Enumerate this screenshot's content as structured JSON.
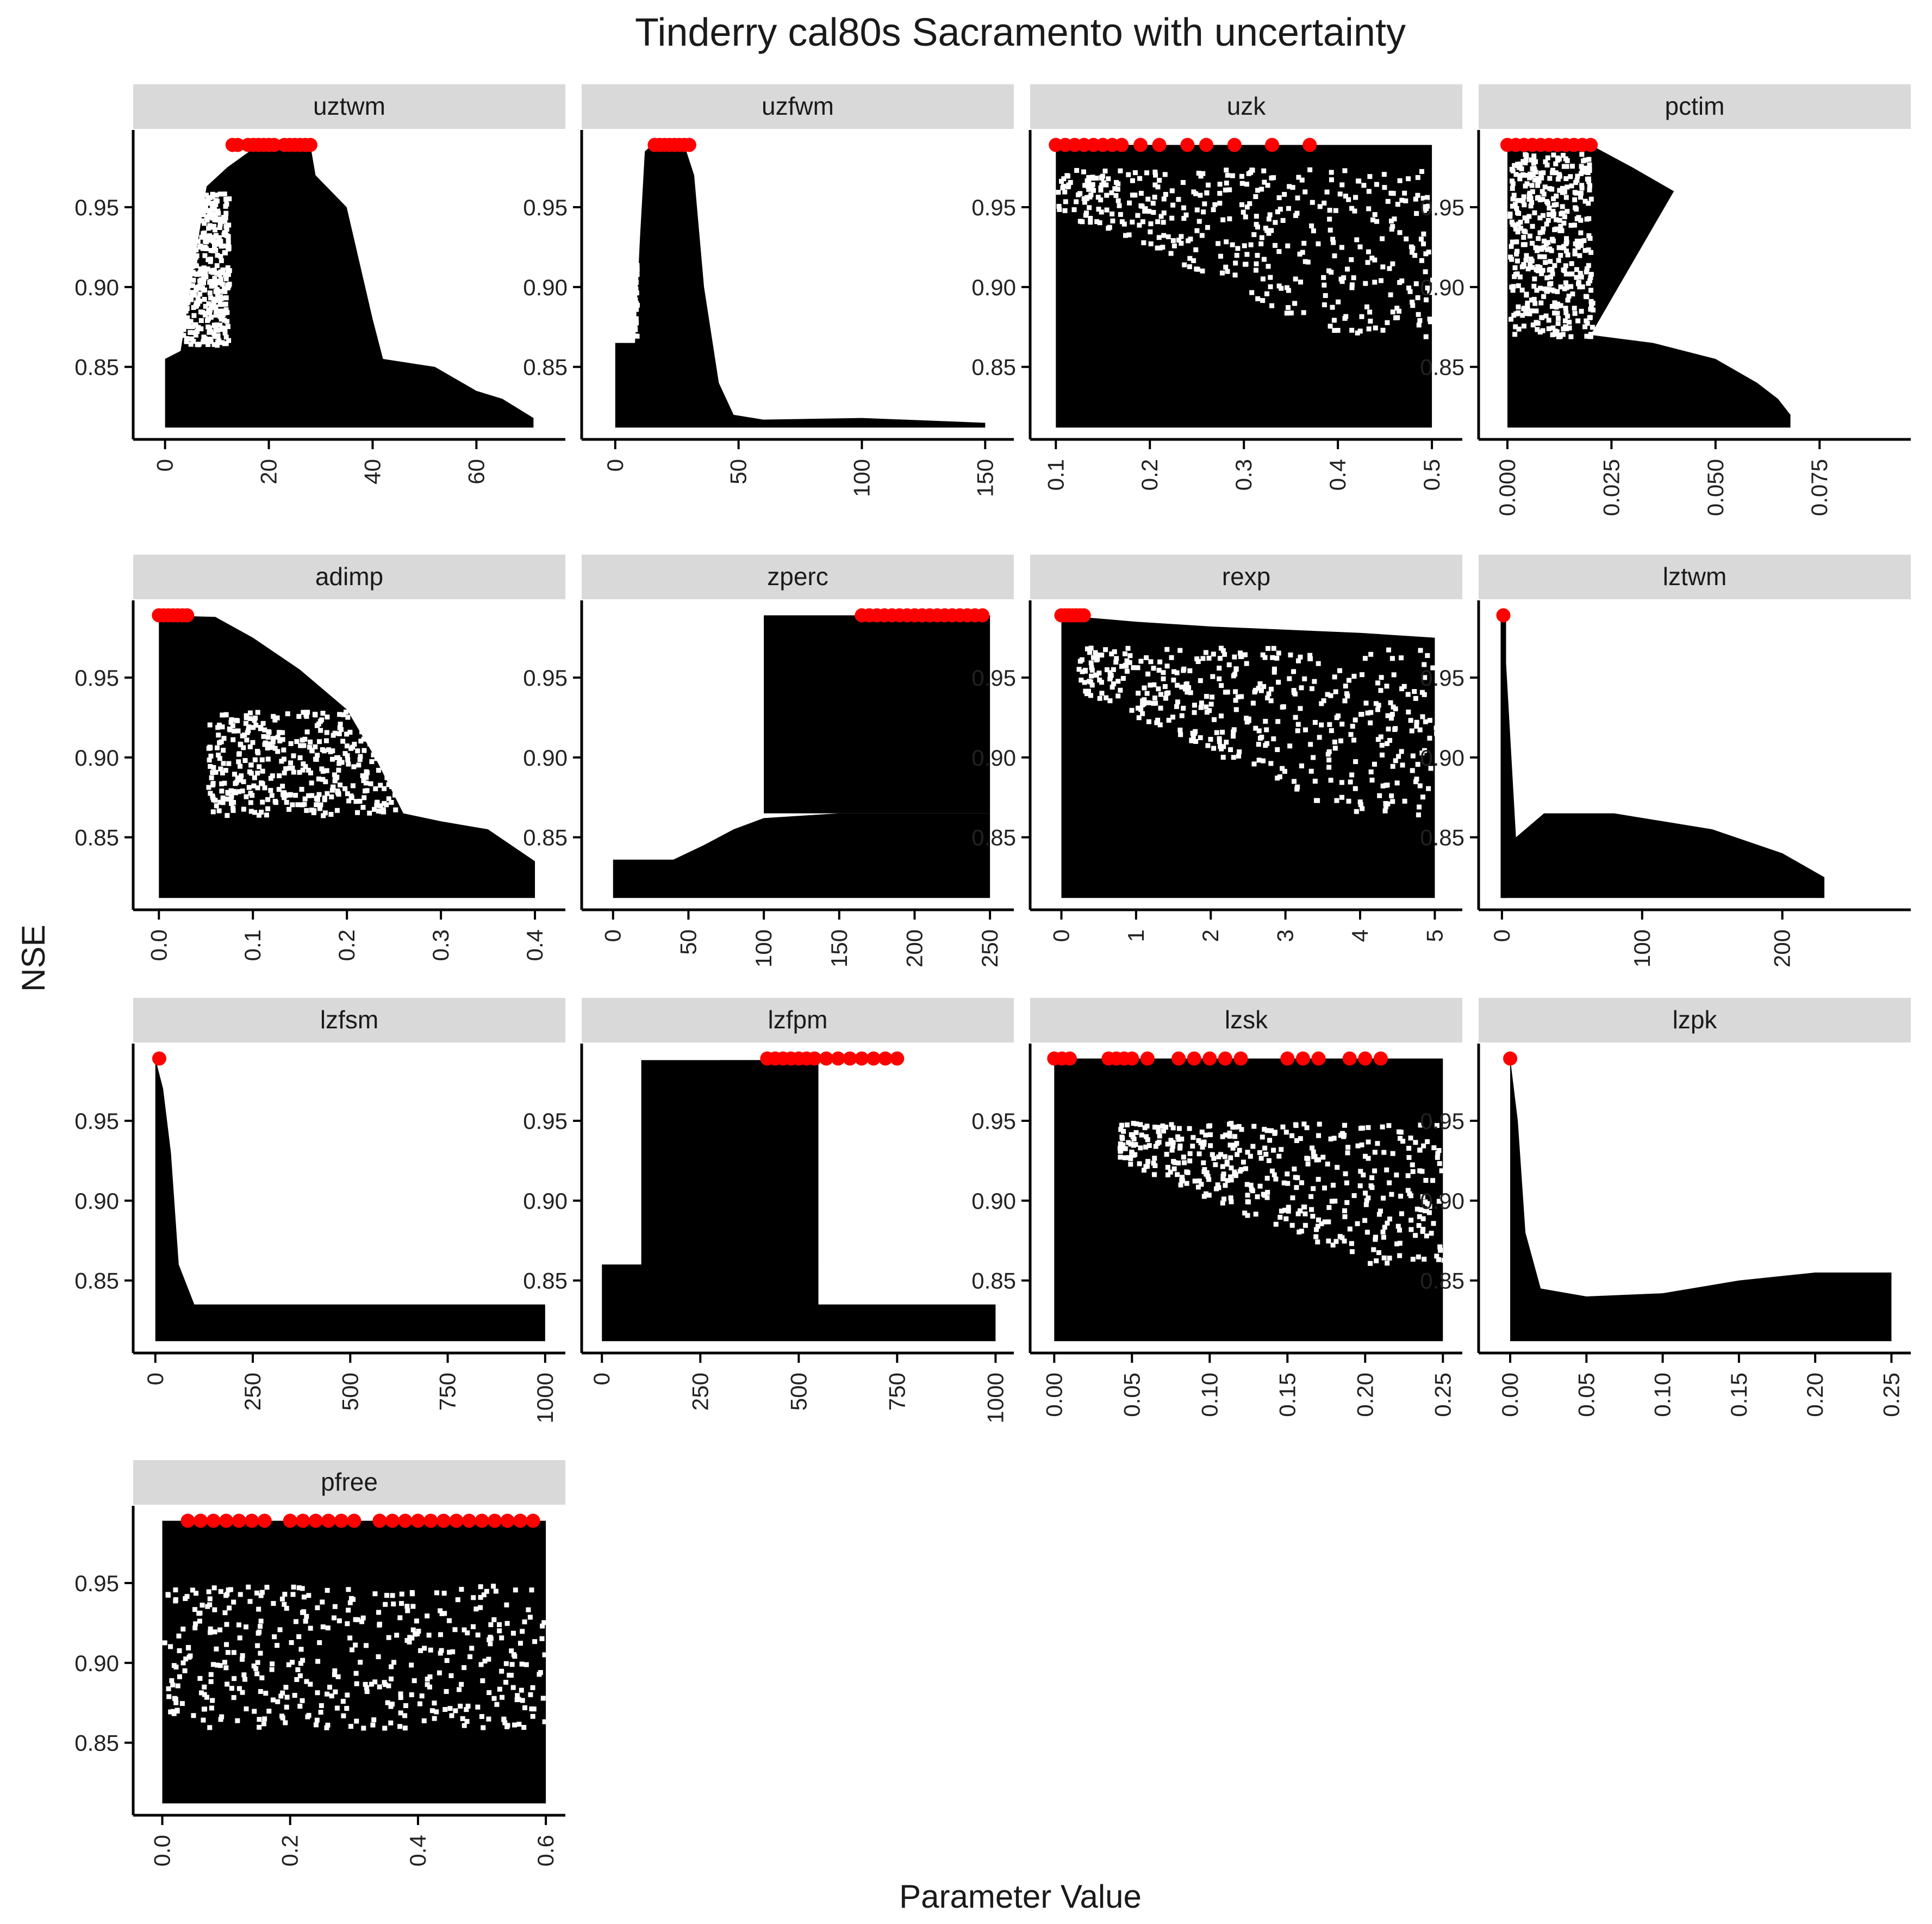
{
  "chart_data": {
    "type": "scatter",
    "title": "Tinderry cal80s Sacramento with uncertainty",
    "xlabel": "Parameter Value",
    "ylabel": "NSE",
    "ylim": [
      0.808,
      0.997
    ],
    "yticks": [
      "0.85",
      "0.90",
      "0.95"
    ],
    "ytick_values": [
      0.85,
      0.9,
      0.95
    ],
    "grid": false,
    "colors": {
      "points": "#000000",
      "best": "#ff0000",
      "strip": "#d9d9d9"
    },
    "panels": [
      {
        "name": "uztwm",
        "xlim": [
          -3,
          74
        ],
        "xticks": [
          0,
          20,
          40,
          60
        ],
        "xtick_labels": [
          "0",
          "20",
          "40",
          "60"
        ],
        "envelope": [
          [
            0,
            0.855
          ],
          [
            3,
            0.86
          ],
          [
            8,
            0.963
          ],
          [
            12,
            0.975
          ],
          [
            18,
            0.989
          ],
          [
            28,
            0.989
          ],
          [
            29,
            0.97
          ],
          [
            35,
            0.95
          ],
          [
            40,
            0.88
          ],
          [
            42,
            0.855
          ],
          [
            52,
            0.85
          ],
          [
            60,
            0.835
          ],
          [
            65,
            0.83
          ],
          [
            71,
            0.818
          ]
        ],
        "white_region": {
          "x": [
            3,
            12
          ],
          "y": [
            0.865,
            0.96
          ]
        },
        "best": [
          13,
          14,
          16,
          17,
          18,
          19,
          20,
          21,
          23,
          24,
          25,
          26,
          27,
          28
        ]
      },
      {
        "name": "uzfwm",
        "xlim": [
          -7,
          155
        ],
        "xticks": [
          0,
          50,
          100,
          150
        ],
        "xtick_labels": [
          "0",
          "50",
          "100",
          "150"
        ],
        "envelope": [
          [
            0,
            0.865
          ],
          [
            8,
            0.865
          ],
          [
            10,
            0.93
          ],
          [
            12,
            0.985
          ],
          [
            15,
            0.989
          ],
          [
            28,
            0.989
          ],
          [
            32,
            0.97
          ],
          [
            36,
            0.9
          ],
          [
            42,
            0.84
          ],
          [
            48,
            0.82
          ],
          [
            60,
            0.817
          ],
          [
            100,
            0.818
          ],
          [
            150,
            0.815
          ]
        ],
        "white_region": {
          "x": [
            0,
            8
          ],
          "y": [
            0.87,
            0.99
          ]
        },
        "best": [
          16,
          18,
          20,
          22,
          24,
          26,
          28,
          30
        ]
      },
      {
        "name": "uzk",
        "xlim": [
          0.09,
          0.515
        ],
        "xticks": [
          0.1,
          0.2,
          0.3,
          0.4,
          0.5
        ],
        "xtick_labels": [
          "0.1",
          "0.2",
          "0.3",
          "0.4",
          "0.5"
        ],
        "envelope": [
          [
            0.1,
            0.989
          ],
          [
            0.5,
            0.989
          ]
        ],
        "white_region": {
          "x": [
            0.1,
            0.5
          ],
          "y": [
            0.87,
            0.975
          ]
        },
        "white_region_tilt": true,
        "best": [
          0.1,
          0.11,
          0.12,
          0.13,
          0.14,
          0.15,
          0.16,
          0.17,
          0.19,
          0.21,
          0.24,
          0.26,
          0.29,
          0.33,
          0.37
        ]
      },
      {
        "name": "pctim",
        "xlim": [
          -0.003,
          0.093
        ],
        "xticks": [
          0.0,
          0.025,
          0.05,
          0.075
        ],
        "xtick_labels": [
          "0.000",
          "0.025",
          "0.050",
          "0.075"
        ],
        "envelope": [
          [
            0,
            0.989
          ],
          [
            0.02,
            0.989
          ],
          [
            0.03,
            0.975
          ],
          [
            0.04,
            0.96
          ],
          [
            0.02,
            0.87
          ],
          [
            0.035,
            0.865
          ],
          [
            0.05,
            0.855
          ],
          [
            0.06,
            0.84
          ],
          [
            0.065,
            0.83
          ],
          [
            0.068,
            0.82
          ]
        ],
        "white_region": {
          "x": [
            0.0,
            0.02
          ],
          "y": [
            0.87,
            0.985
          ]
        },
        "best": [
          0.0,
          0.002,
          0.004,
          0.006,
          0.008,
          0.01,
          0.012,
          0.014,
          0.016,
          0.018,
          0.02
        ]
      },
      {
        "name": "adimp",
        "xlim": [
          -0.01,
          0.415
        ],
        "xticks": [
          0.0,
          0.1,
          0.2,
          0.3,
          0.4
        ],
        "xtick_labels": [
          "0.0",
          "0.1",
          "0.2",
          "0.3",
          "0.4"
        ],
        "envelope": [
          [
            0,
            0.989
          ],
          [
            0.06,
            0.988
          ],
          [
            0.1,
            0.975
          ],
          [
            0.15,
            0.955
          ],
          [
            0.2,
            0.93
          ],
          [
            0.23,
            0.9
          ],
          [
            0.26,
            0.865
          ],
          [
            0.3,
            0.86
          ],
          [
            0.35,
            0.855
          ],
          [
            0.4,
            0.835
          ]
        ],
        "white_region": {
          "x": [
            0.05,
            0.25
          ],
          "y": [
            0.865,
            0.93
          ]
        },
        "best": [
          0.0,
          0.005,
          0.01,
          0.015,
          0.02,
          0.025,
          0.03
        ]
      },
      {
        "name": "zperc",
        "xlim": [
          -10,
          255
        ],
        "xticks": [
          0,
          50,
          100,
          150,
          200,
          250
        ],
        "xtick_labels": [
          "0",
          "50",
          "100",
          "150",
          "200",
          "250"
        ],
        "envelope": [
          [
            0,
            0.836
          ],
          [
            40,
            0.836
          ],
          [
            60,
            0.845
          ],
          [
            80,
            0.855
          ],
          [
            100,
            0.862
          ],
          [
            150,
            0.865
          ],
          [
            250,
            0.865
          ]
        ],
        "upper_block": {
          "x": [
            100,
            250
          ],
          "y": [
            0.865,
            0.989
          ]
        },
        "best": [
          165,
          170,
          175,
          180,
          185,
          190,
          195,
          200,
          205,
          210,
          215,
          220,
          225,
          230,
          235,
          240,
          245
        ]
      },
      {
        "name": "rexp",
        "xlim": [
          -0.2,
          5.15
        ],
        "xticks": [
          0,
          1,
          2,
          3,
          4,
          5
        ],
        "xtick_labels": [
          "0",
          "1",
          "2",
          "3",
          "4",
          "5"
        ],
        "envelope": [
          [
            0,
            0.989
          ],
          [
            1,
            0.985
          ],
          [
            2,
            0.982
          ],
          [
            3,
            0.98
          ],
          [
            4,
            0.978
          ],
          [
            5,
            0.975
          ]
        ],
        "white_region": {
          "x": [
            0.2,
            5
          ],
          "y": [
            0.865,
            0.97
          ]
        },
        "white_region_tilt": true,
        "best": [
          0.0,
          0.05,
          0.1,
          0.15,
          0.2,
          0.25,
          0.3
        ]
      },
      {
        "name": "lztwm",
        "xlim": [
          -5,
          280
        ],
        "xticks": [
          0,
          100,
          200
        ],
        "xtick_labels": [
          "0",
          "100",
          "200"
        ],
        "envelope": [
          [
            0,
            0.989
          ],
          [
            1,
            0.989
          ],
          [
            10,
            0.85
          ],
          [
            30,
            0.865
          ],
          [
            80,
            0.865
          ],
          [
            150,
            0.855
          ],
          [
            200,
            0.84
          ],
          [
            230,
            0.825
          ]
        ],
        "spike_x": 1,
        "best": [
          1
        ]
      },
      {
        "name": "lzfsm",
        "xlim": [
          -15,
          1010
        ],
        "xticks": [
          0,
          250,
          500,
          750,
          1000
        ],
        "xtick_labels": [
          "0",
          "250",
          "500",
          "750",
          "1000"
        ],
        "envelope": [
          [
            0,
            0.989
          ],
          [
            20,
            0.97
          ],
          [
            40,
            0.93
          ],
          [
            60,
            0.86
          ],
          [
            100,
            0.835
          ],
          [
            1000,
            0.835
          ]
        ],
        "best": [
          10
        ]
      },
      {
        "name": "lzfpm",
        "xlim": [
          -10,
          1005
        ],
        "xticks": [
          0,
          250,
          500,
          750,
          1000
        ],
        "xtick_labels": [
          "0",
          "250",
          "500",
          "750",
          "1000"
        ],
        "envelope": [
          [
            0,
            0.86
          ],
          [
            100,
            0.86
          ],
          [
            150,
            0.98
          ],
          [
            300,
            0.988
          ],
          [
            550,
            0.988
          ],
          [
            550,
            0.835
          ],
          [
            1000,
            0.835
          ]
        ],
        "upper_block": {
          "x": [
            100,
            550
          ],
          "y": [
            0.86,
            0.988
          ]
        },
        "best": [
          420,
          440,
          460,
          480,
          500,
          520,
          540,
          570,
          600,
          630,
          660,
          690,
          720,
          750
        ]
      },
      {
        "name": "lzsk",
        "xlim": [
          -0.005,
          0.252
        ],
        "xticks": [
          0.0,
          0.05,
          0.1,
          0.15,
          0.2,
          0.25
        ],
        "xtick_labels": [
          "0.00",
          "0.05",
          "0.10",
          "0.15",
          "0.20",
          "0.25"
        ],
        "envelope": [
          [
            0,
            0.989
          ],
          [
            0.25,
            0.989
          ]
        ],
        "white_region": {
          "x": [
            0.04,
            0.25
          ],
          "y": [
            0.86,
            0.95
          ]
        },
        "white_region_tilt": true,
        "best": [
          0.0,
          0.005,
          0.01,
          0.035,
          0.04,
          0.045,
          0.05,
          0.06,
          0.08,
          0.09,
          0.1,
          0.11,
          0.12,
          0.15,
          0.16,
          0.17,
          0.19,
          0.2,
          0.21
        ]
      },
      {
        "name": "lzpk",
        "xlim": [
          -0.01,
          0.252
        ],
        "xticks": [
          0.0,
          0.05,
          0.1,
          0.15,
          0.2,
          0.25
        ],
        "xtick_labels": [
          "0.00",
          "0.05",
          "0.10",
          "0.15",
          "0.20",
          "0.25"
        ],
        "envelope": [
          [
            0,
            0.989
          ],
          [
            0.005,
            0.95
          ],
          [
            0.01,
            0.88
          ],
          [
            0.02,
            0.845
          ],
          [
            0.05,
            0.84
          ],
          [
            0.1,
            0.842
          ],
          [
            0.15,
            0.85
          ],
          [
            0.2,
            0.855
          ],
          [
            0.25,
            0.855
          ]
        ],
        "best": [
          0.0
        ]
      },
      {
        "name": "pfree",
        "xlim": [
          -0.02,
          0.605
        ],
        "xticks": [
          0.0,
          0.2,
          0.4,
          0.6
        ],
        "xtick_labels": [
          "0.0",
          "0.2",
          "0.4",
          "0.6"
        ],
        "envelope": [
          [
            0,
            0.989
          ],
          [
            0.6,
            0.989
          ]
        ],
        "white_region": {
          "x": [
            0.0,
            0.6
          ],
          "y": [
            0.86,
            0.95
          ]
        },
        "best": [
          0.04,
          0.06,
          0.08,
          0.1,
          0.12,
          0.14,
          0.16,
          0.2,
          0.22,
          0.24,
          0.26,
          0.28,
          0.3,
          0.34,
          0.36,
          0.38,
          0.4,
          0.42,
          0.44,
          0.46,
          0.48,
          0.5,
          0.52,
          0.54,
          0.56,
          0.58
        ]
      }
    ]
  }
}
